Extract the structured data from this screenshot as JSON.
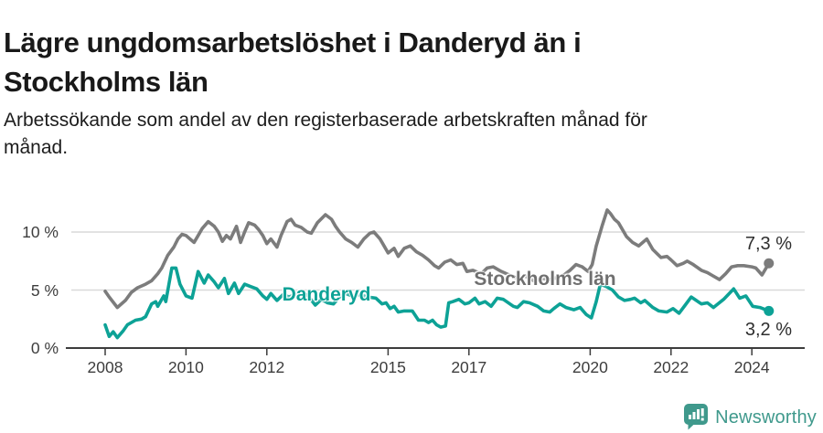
{
  "title": {
    "line1": "Lägre ungdomsarbetslöshet i Danderyd än i",
    "line2": "Stockholms län"
  },
  "subtitle": {
    "line1": "Arbetssökande som andel av den registerbaserade arbetskraften månad för",
    "line2": "månad."
  },
  "footer": {
    "brand": "Newsworthy",
    "brand_color": "#3f998c"
  },
  "chart_data": {
    "type": "line",
    "title": "Lägre ungdomsarbetslöshet i Danderyd än i Stockholms län",
    "subtitle": "Arbetssökande som andel av den registerbaserade arbetskraften månad för månad.",
    "xlabel": "",
    "ylabel": "",
    "legend": "inline-labels",
    "grid": "horizontal",
    "x_axis": {
      "tick_values": [
        2008,
        2010,
        2012,
        2015,
        2017,
        2020,
        2022,
        2024
      ],
      "tick_labels": [
        "2008",
        "2010",
        "2012",
        "2015",
        "2017",
        "2020",
        "2022",
        "2024"
      ],
      "range": [
        2008,
        2024.75
      ]
    },
    "y_axis": {
      "tick_values": [
        0,
        5,
        10
      ],
      "tick_labels": [
        "0 %",
        "5 %",
        "10 %"
      ],
      "range": [
        0,
        12
      ]
    },
    "series": [
      {
        "name": "Stockholms län",
        "color": "#7c7c7c",
        "end_label": "7,3 %",
        "end_value": 7.3,
        "points": [
          [
            2008.0,
            4.9
          ],
          [
            2008.1,
            4.4
          ],
          [
            2008.3,
            3.5
          ],
          [
            2008.5,
            4.1
          ],
          [
            2008.65,
            4.8
          ],
          [
            2008.8,
            5.2
          ],
          [
            2009.0,
            5.5
          ],
          [
            2009.15,
            5.8
          ],
          [
            2009.3,
            6.4
          ],
          [
            2009.4,
            6.9
          ],
          [
            2009.55,
            8.0
          ],
          [
            2009.7,
            8.7
          ],
          [
            2009.8,
            9.4
          ],
          [
            2009.9,
            9.8
          ],
          [
            2010.0,
            9.7
          ],
          [
            2010.1,
            9.4
          ],
          [
            2010.2,
            9.1
          ],
          [
            2010.3,
            9.7
          ],
          [
            2010.4,
            10.3
          ],
          [
            2010.55,
            10.9
          ],
          [
            2010.7,
            10.5
          ],
          [
            2010.8,
            10.0
          ],
          [
            2010.9,
            9.2
          ],
          [
            2011.0,
            9.7
          ],
          [
            2011.1,
            9.4
          ],
          [
            2011.25,
            10.5
          ],
          [
            2011.35,
            9.1
          ],
          [
            2011.45,
            10.0
          ],
          [
            2011.55,
            10.8
          ],
          [
            2011.7,
            10.6
          ],
          [
            2011.8,
            10.2
          ],
          [
            2011.9,
            9.7
          ],
          [
            2012.0,
            9.0
          ],
          [
            2012.1,
            9.4
          ],
          [
            2012.25,
            8.7
          ],
          [
            2012.35,
            9.7
          ],
          [
            2012.5,
            10.9
          ],
          [
            2012.6,
            11.1
          ],
          [
            2012.7,
            10.6
          ],
          [
            2012.85,
            10.4
          ],
          [
            2013.0,
            10.0
          ],
          [
            2013.1,
            9.9
          ],
          [
            2013.25,
            10.8
          ],
          [
            2013.45,
            11.5
          ],
          [
            2013.6,
            11.1
          ],
          [
            2013.7,
            10.5
          ],
          [
            2013.8,
            10.0
          ],
          [
            2013.95,
            9.4
          ],
          [
            2014.1,
            9.1
          ],
          [
            2014.25,
            8.7
          ],
          [
            2014.4,
            9.4
          ],
          [
            2014.55,
            9.9
          ],
          [
            2014.65,
            10.0
          ],
          [
            2014.8,
            9.4
          ],
          [
            2014.9,
            8.8
          ],
          [
            2015.0,
            8.2
          ],
          [
            2015.15,
            8.6
          ],
          [
            2015.25,
            7.9
          ],
          [
            2015.4,
            8.6
          ],
          [
            2015.55,
            8.8
          ],
          [
            2015.7,
            8.3
          ],
          [
            2015.85,
            8.0
          ],
          [
            2016.0,
            7.6
          ],
          [
            2016.15,
            7.1
          ],
          [
            2016.25,
            6.9
          ],
          [
            2016.4,
            7.4
          ],
          [
            2016.55,
            7.6
          ],
          [
            2016.7,
            7.2
          ],
          [
            2016.85,
            7.3
          ],
          [
            2016.95,
            6.6
          ],
          [
            2017.1,
            6.7
          ],
          [
            2017.3,
            6.4
          ],
          [
            2017.45,
            6.9
          ],
          [
            2017.6,
            7.0
          ],
          [
            2017.8,
            6.6
          ],
          [
            2018.0,
            6.3
          ],
          [
            2018.2,
            6.0
          ],
          [
            2018.4,
            6.2
          ],
          [
            2018.6,
            5.8
          ],
          [
            2018.8,
            6.0
          ],
          [
            2019.0,
            5.9
          ],
          [
            2019.2,
            6.1
          ],
          [
            2019.35,
            6.3
          ],
          [
            2019.5,
            6.7
          ],
          [
            2019.65,
            7.2
          ],
          [
            2019.8,
            7.0
          ],
          [
            2019.95,
            6.6
          ],
          [
            2020.05,
            7.2
          ],
          [
            2020.15,
            8.8
          ],
          [
            2020.3,
            10.6
          ],
          [
            2020.42,
            11.9
          ],
          [
            2020.5,
            11.6
          ],
          [
            2020.6,
            11.1
          ],
          [
            2020.7,
            10.8
          ],
          [
            2020.9,
            9.6
          ],
          [
            2021.05,
            9.1
          ],
          [
            2021.2,
            8.8
          ],
          [
            2021.4,
            9.4
          ],
          [
            2021.55,
            8.5
          ],
          [
            2021.75,
            7.8
          ],
          [
            2021.9,
            7.9
          ],
          [
            2022.0,
            7.6
          ],
          [
            2022.15,
            7.1
          ],
          [
            2022.3,
            7.3
          ],
          [
            2022.4,
            7.5
          ],
          [
            2022.55,
            7.2
          ],
          [
            2022.75,
            6.7
          ],
          [
            2022.9,
            6.5
          ],
          [
            2023.0,
            6.3
          ],
          [
            2023.2,
            5.9
          ],
          [
            2023.35,
            6.4
          ],
          [
            2023.5,
            7.0
          ],
          [
            2023.65,
            7.1
          ],
          [
            2023.8,
            7.1
          ],
          [
            2024.0,
            7.0
          ],
          [
            2024.1,
            6.9
          ],
          [
            2024.25,
            6.3
          ],
          [
            2024.42,
            7.3
          ]
        ]
      },
      {
        "name": "Danderyd",
        "color": "#0da296",
        "end_label": "3,2 %",
        "end_value": 3.2,
        "points": [
          [
            2008.0,
            2.0
          ],
          [
            2008.1,
            1.0
          ],
          [
            2008.2,
            1.4
          ],
          [
            2008.3,
            0.9
          ],
          [
            2008.45,
            1.5
          ],
          [
            2008.55,
            2.0
          ],
          [
            2008.75,
            2.4
          ],
          [
            2008.9,
            2.5
          ],
          [
            2009.0,
            2.7
          ],
          [
            2009.15,
            3.8
          ],
          [
            2009.25,
            4.0
          ],
          [
            2009.3,
            3.6
          ],
          [
            2009.45,
            4.5
          ],
          [
            2009.5,
            4.0
          ],
          [
            2009.65,
            6.9
          ],
          [
            2009.75,
            6.9
          ],
          [
            2009.85,
            5.5
          ],
          [
            2010.0,
            4.5
          ],
          [
            2010.15,
            4.3
          ],
          [
            2010.3,
            6.6
          ],
          [
            2010.45,
            5.6
          ],
          [
            2010.55,
            6.3
          ],
          [
            2010.7,
            5.7
          ],
          [
            2010.8,
            5.2
          ],
          [
            2010.95,
            6.0
          ],
          [
            2011.05,
            4.7
          ],
          [
            2011.2,
            5.6
          ],
          [
            2011.3,
            4.7
          ],
          [
            2011.45,
            5.5
          ],
          [
            2011.6,
            5.3
          ],
          [
            2011.75,
            5.1
          ],
          [
            2011.9,
            4.5
          ],
          [
            2012.0,
            4.2
          ],
          [
            2012.1,
            4.7
          ],
          [
            2012.25,
            4.1
          ],
          [
            2012.4,
            4.6
          ],
          [
            2012.55,
            4.4
          ],
          [
            2012.7,
            4.6
          ],
          [
            2012.85,
            4.3
          ],
          [
            2013.0,
            4.6
          ],
          [
            2013.2,
            3.7
          ],
          [
            2013.35,
            4.2
          ],
          [
            2013.5,
            3.9
          ],
          [
            2013.65,
            3.8
          ],
          [
            2013.8,
            4.4
          ],
          [
            2013.95,
            4.7
          ],
          [
            2014.1,
            4.5
          ],
          [
            2014.3,
            4.6
          ],
          [
            2014.5,
            4.4
          ],
          [
            2014.7,
            4.3
          ],
          [
            2014.85,
            3.8
          ],
          [
            2014.95,
            3.9
          ],
          [
            2015.05,
            3.4
          ],
          [
            2015.15,
            3.6
          ],
          [
            2015.25,
            3.1
          ],
          [
            2015.4,
            3.2
          ],
          [
            2015.6,
            3.2
          ],
          [
            2015.75,
            2.4
          ],
          [
            2015.9,
            2.4
          ],
          [
            2016.0,
            2.2
          ],
          [
            2016.1,
            2.4
          ],
          [
            2016.2,
            2.0
          ],
          [
            2016.3,
            1.8
          ],
          [
            2016.42,
            1.9
          ],
          [
            2016.5,
            3.9
          ],
          [
            2016.6,
            4.0
          ],
          [
            2016.75,
            4.2
          ],
          [
            2016.9,
            3.8
          ],
          [
            2017.0,
            3.9
          ],
          [
            2017.15,
            4.3
          ],
          [
            2017.25,
            3.8
          ],
          [
            2017.4,
            4.0
          ],
          [
            2017.55,
            3.6
          ],
          [
            2017.7,
            4.3
          ],
          [
            2017.85,
            4.2
          ],
          [
            2018.1,
            3.6
          ],
          [
            2018.2,
            3.5
          ],
          [
            2018.35,
            4.0
          ],
          [
            2018.5,
            3.9
          ],
          [
            2018.7,
            3.6
          ],
          [
            2018.85,
            3.2
          ],
          [
            2019.0,
            3.1
          ],
          [
            2019.1,
            3.4
          ],
          [
            2019.25,
            3.8
          ],
          [
            2019.4,
            3.5
          ],
          [
            2019.6,
            3.3
          ],
          [
            2019.75,
            3.5
          ],
          [
            2019.9,
            2.9
          ],
          [
            2020.03,
            2.6
          ],
          [
            2020.15,
            4.0
          ],
          [
            2020.25,
            5.5
          ],
          [
            2020.4,
            5.3
          ],
          [
            2020.55,
            5.0
          ],
          [
            2020.7,
            4.4
          ],
          [
            2020.85,
            4.1
          ],
          [
            2021.0,
            4.2
          ],
          [
            2021.1,
            4.3
          ],
          [
            2021.25,
            3.9
          ],
          [
            2021.35,
            4.1
          ],
          [
            2021.55,
            3.5
          ],
          [
            2021.7,
            3.2
          ],
          [
            2021.9,
            3.1
          ],
          [
            2022.05,
            3.4
          ],
          [
            2022.2,
            3.0
          ],
          [
            2022.35,
            3.7
          ],
          [
            2022.5,
            4.4
          ],
          [
            2022.75,
            3.8
          ],
          [
            2022.9,
            3.9
          ],
          [
            2023.05,
            3.5
          ],
          [
            2023.3,
            4.2
          ],
          [
            2023.55,
            5.1
          ],
          [
            2023.7,
            4.3
          ],
          [
            2023.85,
            4.5
          ],
          [
            2024.02,
            3.6
          ],
          [
            2024.2,
            3.5
          ],
          [
            2024.42,
            3.2
          ]
        ]
      }
    ]
  }
}
